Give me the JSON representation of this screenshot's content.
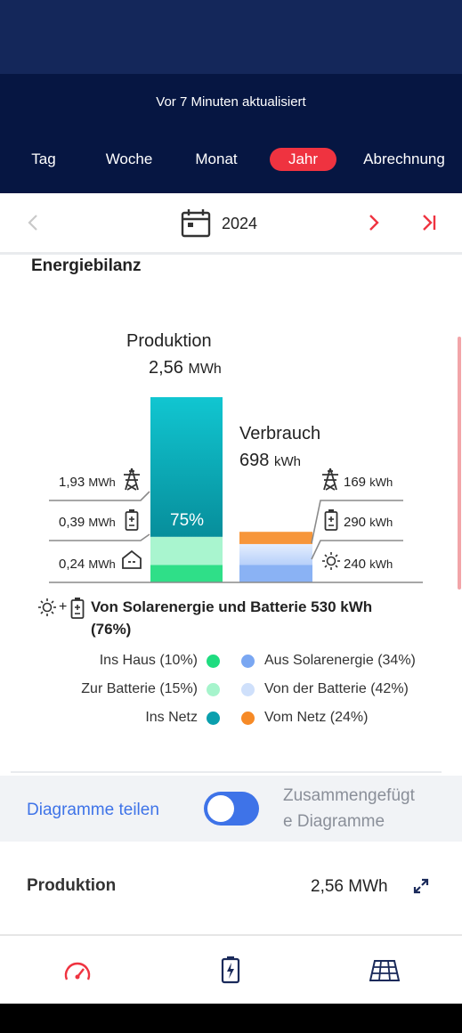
{
  "header": {
    "updated": "Vor 7 Minuten aktualisiert",
    "tabs": [
      {
        "label": "Tag"
      },
      {
        "label": "Woche"
      },
      {
        "label": "Monat"
      },
      {
        "label": "Jahr",
        "active": true
      },
      {
        "label": "Abrechnung"
      }
    ],
    "colors": {
      "top": "#14275a",
      "bottom": "#061642",
      "active_tab": "#ef3340"
    }
  },
  "date_nav": {
    "year": "2024",
    "prev_icon": "chevron-left-icon",
    "next_icon": "chevron-right-icon",
    "last_icon": "skip-to-end-icon",
    "calendar_icon": "calendar-icon"
  },
  "energy": {
    "title": "Energiebilanz",
    "production": {
      "label": "Produktion",
      "value": "2,56",
      "unit": "MWh",
      "percent": "75%",
      "rows": [
        {
          "value": "1,93",
          "unit": "MWh",
          "icon": "power-pylon-icon"
        },
        {
          "value": "0,39",
          "unit": "MWh",
          "icon": "battery-icon"
        },
        {
          "value": "0,24",
          "unit": "MWh",
          "icon": "house-icon"
        }
      ]
    },
    "consumption": {
      "label": "Verbrauch",
      "value": "698",
      "unit": "kWh",
      "rows": [
        {
          "value": "169",
          "unit": "kWh",
          "icon": "power-pylon-icon"
        },
        {
          "value": "290",
          "unit": "kWh",
          "icon": "battery-icon"
        },
        {
          "value": "240",
          "unit": "kWh",
          "icon": "sun-icon"
        }
      ]
    },
    "summary_line1": "Von Solarenergie und Batterie 530 kWh",
    "summary_line2": "(76%)",
    "summary_plus": "+",
    "legend": [
      {
        "label": "Ins Haus (10%)",
        "color": "#1fdc80"
      },
      {
        "label": "Zur Batterie (15%)",
        "color": "#a6f4cc"
      },
      {
        "label": "Ins Netz",
        "color": "#0a9fad"
      },
      {
        "label": "Aus Solarenergie (34%)",
        "color": "#7aa7f2"
      },
      {
        "label": "Von der Batterie (42%)",
        "color": "#cfe0fb"
      },
      {
        "label": "Vom Netz (24%)",
        "color": "#f68a26"
      }
    ]
  },
  "share": {
    "label": "Diagramme teilen",
    "right_line1": "Zusammengefügt",
    "right_line2": "e Diagramme",
    "toggle_on": true
  },
  "production_row": {
    "label": "Produktion",
    "value": "2,56 MWh",
    "icon": "expand-icon"
  },
  "bottom_nav": [
    {
      "icon": "speedometer-icon"
    },
    {
      "icon": "battery-charging-icon"
    },
    {
      "icon": "solar-panel-icon"
    }
  ],
  "chart_data": {
    "type": "bar",
    "categories": [
      "Produktion",
      "Verbrauch"
    ],
    "series": [
      {
        "values": [
          0.24,
          0.24
        ]
      },
      {
        "values": [
          0.39,
          0.29
        ]
      },
      {
        "values": [
          1.93,
          0.169
        ]
      }
    ],
    "units": "MWh"
  }
}
